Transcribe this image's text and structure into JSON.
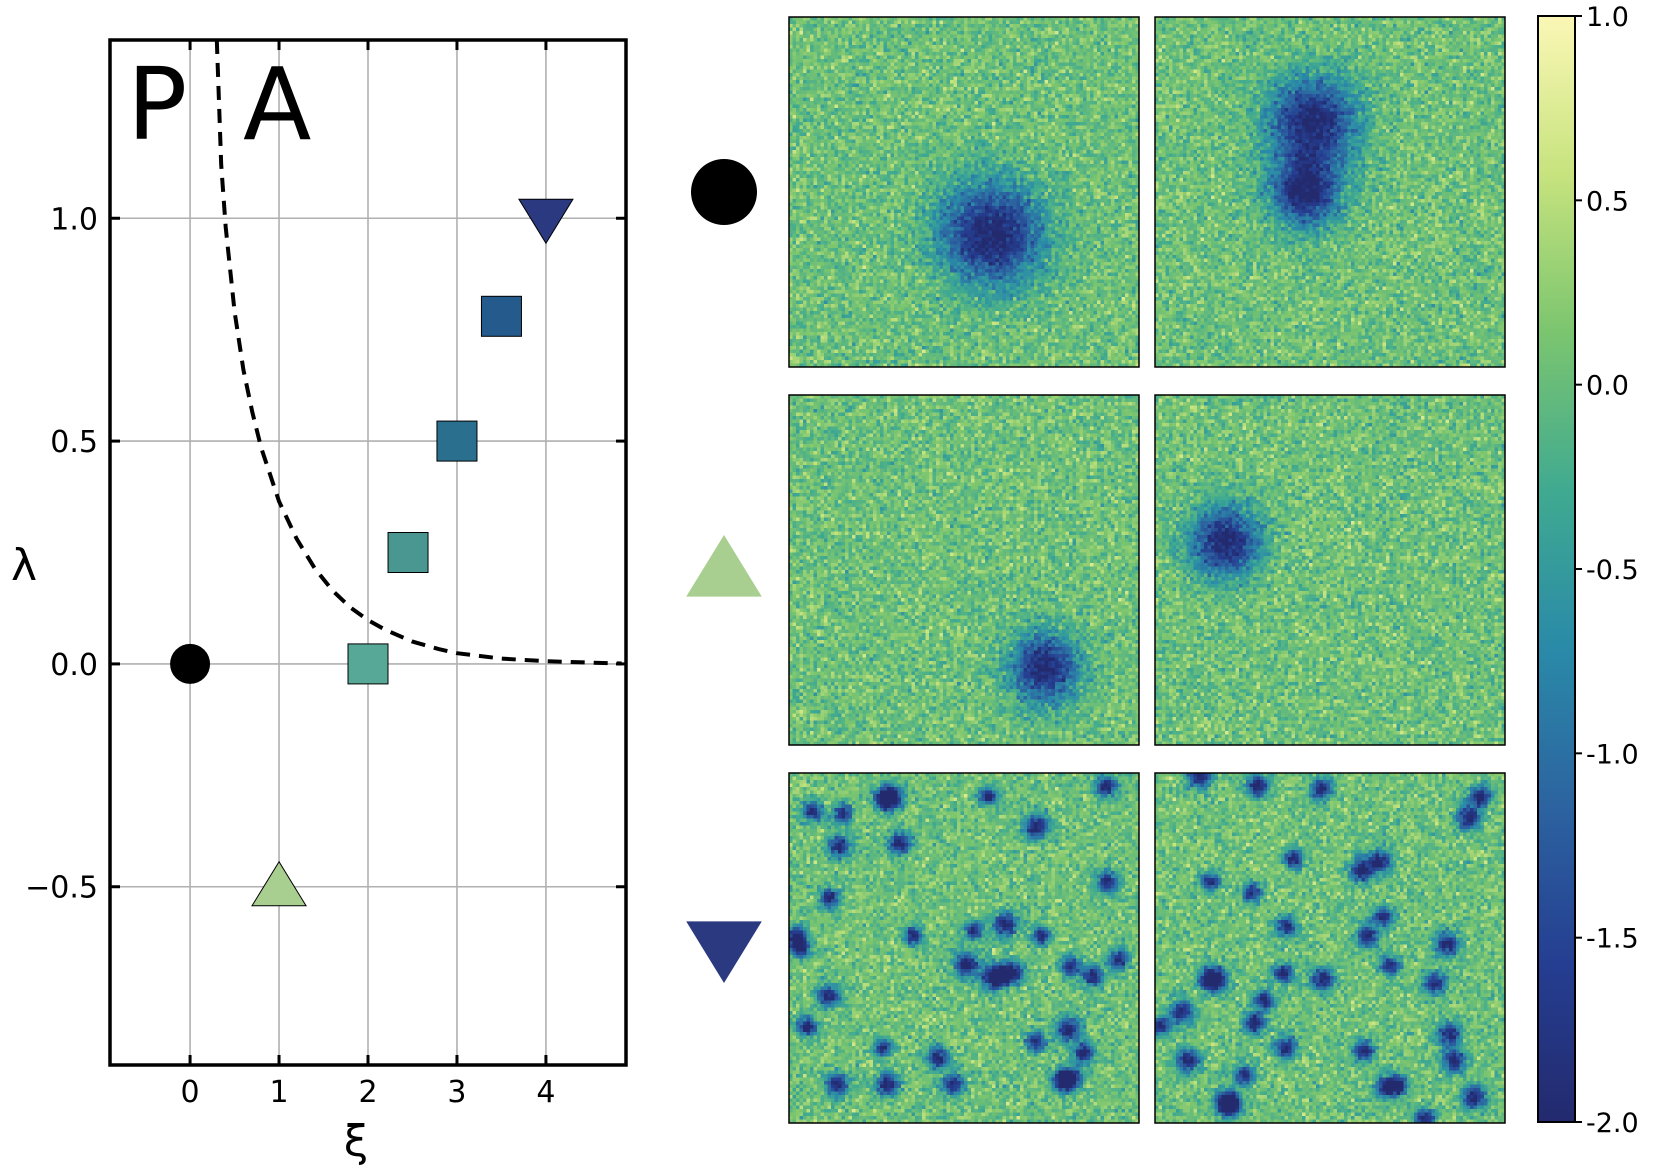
{
  "chart_data": {
    "type": "scatter",
    "xlabel": "ξ",
    "ylabel": "λ",
    "xlim": [
      -0.9,
      4.9
    ],
    "ylim": [
      -0.9,
      1.4
    ],
    "xticks": [
      0,
      1,
      2,
      3,
      4
    ],
    "xtick_labels": [
      "0",
      "1",
      "2",
      "3",
      "4"
    ],
    "yticks": [
      -0.5,
      0.0,
      0.5,
      1.0
    ],
    "ytick_labels": [
      "−0.5",
      "0.0",
      "0.5",
      "1.0"
    ],
    "grid": true,
    "region_labels": [
      "P",
      "A"
    ],
    "boundary_curve": {
      "style": "dashed",
      "color": "#000000",
      "x": [
        0.3,
        0.35,
        0.4,
        0.5,
        0.6,
        0.7,
        0.8,
        1.0,
        1.2,
        1.4,
        1.6,
        1.8,
        2.0,
        2.2,
        2.5,
        2.8,
        3.0,
        3.5,
        4.0,
        4.5,
        4.85
      ],
      "y": [
        1.4,
        1.12,
        0.98,
        0.79,
        0.66,
        0.565,
        0.485,
        0.365,
        0.28,
        0.215,
        0.165,
        0.127,
        0.098,
        0.076,
        0.05,
        0.033,
        0.024,
        0.012,
        0.006,
        0.003,
        0.001
      ]
    },
    "points": [
      {
        "x": 0.0,
        "y": 0.0,
        "marker": "circle",
        "color": "#000000"
      },
      {
        "x": 1.0,
        "y": -0.5,
        "marker": "triangle-up",
        "color": "#a8cf8f"
      },
      {
        "x": 2.0,
        "y": 0.0,
        "marker": "square",
        "color": "#58a898"
      },
      {
        "x": 2.45,
        "y": 0.25,
        "marker": "square",
        "color": "#4a9690"
      },
      {
        "x": 3.0,
        "y": 0.5,
        "marker": "square",
        "color": "#2a6f8e"
      },
      {
        "x": 3.5,
        "y": 0.78,
        "marker": "square",
        "color": "#245a8c"
      },
      {
        "x": 4.0,
        "y": 1.0,
        "marker": "triangle-down",
        "color": "#2b3a80"
      }
    ],
    "panels": [
      {
        "row_marker": "circle",
        "marker_color": "#000000",
        "blob_mode": "single",
        "blobs_left": [
          [
            0.58,
            0.62,
            0.15
          ]
        ],
        "blobs_right": [
          [
            0.45,
            0.3,
            0.13
          ],
          [
            0.43,
            0.5,
            0.1
          ]
        ]
      },
      {
        "row_marker": "triangle-up",
        "marker_color": "#a8cf8f",
        "blob_mode": "single",
        "blobs_left": [
          [
            0.73,
            0.78,
            0.1
          ]
        ],
        "blobs_right": [
          [
            0.2,
            0.42,
            0.1
          ]
        ]
      },
      {
        "row_marker": "triangle-down",
        "marker_color": "#2b3a80",
        "blob_mode": "many",
        "blobs_left": [],
        "blobs_right": []
      }
    ],
    "colorbar": {
      "min": -2.0,
      "max": 1.0,
      "ticks": [
        1.0,
        0.5,
        0.0,
        -0.5,
        -1.0,
        -1.5,
        -2.0
      ],
      "tick_labels": [
        "1.0",
        "0.5",
        "0.0",
        "-0.5",
        "-1.0",
        "-1.5",
        "-2.0"
      ],
      "colormap": [
        "#232a6e",
        "#253e91",
        "#2c63a0",
        "#2a8aa8",
        "#40aa90",
        "#7bc56f",
        "#c7e37e",
        "#fbf7b6"
      ]
    }
  }
}
